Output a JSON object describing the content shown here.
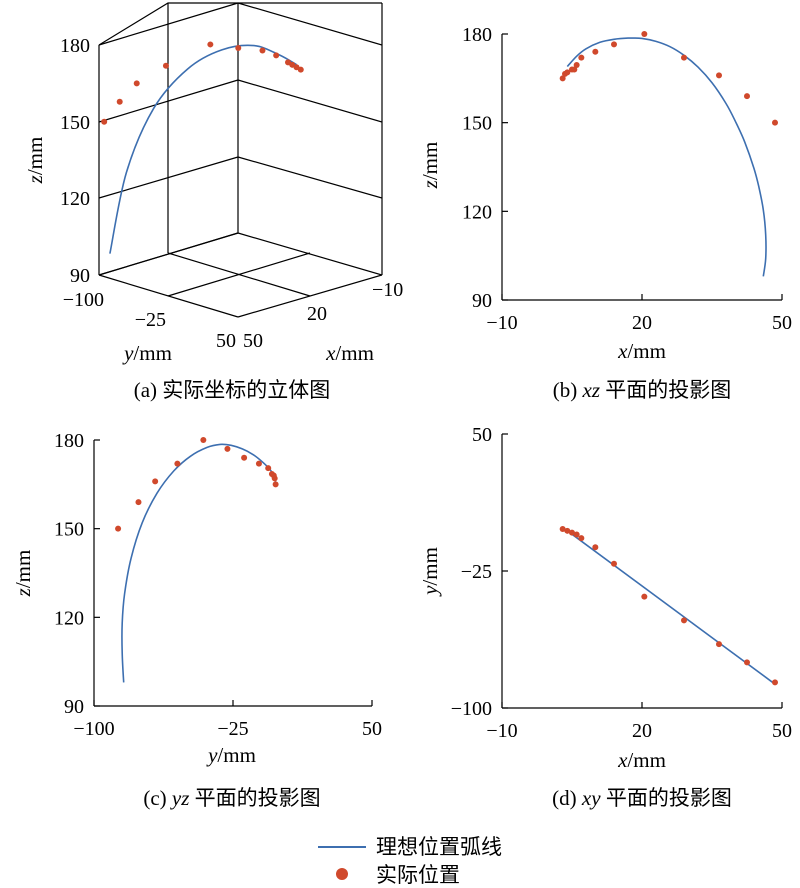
{
  "colors": {
    "ideal_line": "#3d6fb0",
    "actual_point": "#d0492c"
  },
  "legend": {
    "ideal_label": "理想位置弧线",
    "actual_label": "实际位置"
  },
  "chart_data": [
    {
      "id": "a",
      "type": "scatter",
      "caption": "(a) 实际坐标的立体图",
      "xlabel_var": "x",
      "ylabel_var": "y",
      "zlabel_var": "z",
      "unit": "/mm",
      "xlim": [
        -10,
        50
      ],
      "ylim": [
        -100,
        50
      ],
      "zlim": [
        90,
        180
      ],
      "x_tick_labels": [
        "−10",
        "20",
        "50"
      ],
      "y_tick_labels": [
        "−100",
        "−25",
        "50"
      ],
      "z_tick_labels": [
        "90",
        "120",
        "150",
        "180"
      ],
      "series": [
        {
          "name": "理想位置弧线",
          "kind": "line",
          "points": [
            [
              47,
              -96,
              98
            ],
            [
              44,
              -86,
              130
            ],
            [
              38,
              -72,
              155
            ],
            [
              30,
              -56,
              170
            ],
            [
              22,
              -40,
              177
            ],
            [
              14,
              -26,
              178
            ],
            [
              8,
              -14,
              174
            ],
            [
              4,
              -6,
              170
            ]
          ]
        },
        {
          "name": "实际位置",
          "kind": "scatter",
          "points": [
            [
              49,
              -97,
              150
            ],
            [
              46,
              -88,
              158
            ],
            [
              42,
              -80,
              165
            ],
            [
              36,
              -64,
              172
            ],
            [
              26,
              -42,
              180
            ],
            [
              19,
              -30,
              178
            ],
            [
              12,
              -22,
              176
            ],
            [
              9,
              -15,
              174
            ],
            [
              6,
              -10,
              171
            ],
            [
              5,
              -8,
              170
            ],
            [
              4,
              -6,
              169
            ],
            [
              3,
              -4,
              168
            ]
          ]
        }
      ]
    },
    {
      "id": "b",
      "type": "line",
      "caption": "(b) xz 平面的投影图",
      "caption_prefix": "(b) ",
      "caption_var": "xz",
      "caption_suffix": " 平面的投影图",
      "xlabel_var": "x",
      "ylabel_var": "z",
      "unit": "/mm",
      "xlim": [
        -10,
        50
      ],
      "ylim": [
        90,
        180
      ],
      "xticks": [
        -10,
        20,
        50
      ],
      "x_tick_labels": [
        "−10",
        "20",
        "50"
      ],
      "yticks": [
        90,
        120,
        150,
        180
      ],
      "y_tick_labels": [
        "90",
        "120",
        "150",
        "180"
      ],
      "series": [
        {
          "name": "理想位置弧线",
          "kind": "line",
          "x": [
            4,
            6,
            8,
            11,
            14,
            17,
            20,
            23,
            26,
            29,
            32,
            35,
            38,
            40,
            42,
            44,
            45,
            46,
            46.5,
            46.5,
            46
          ],
          "y": [
            169,
            172.5,
            175,
            177.2,
            178.2,
            178.6,
            178.5,
            177.5,
            175.7,
            172.8,
            168.8,
            163.5,
            156.5,
            150.5,
            143.5,
            134.5,
            128.5,
            120.5,
            112,
            104,
            98
          ]
        },
        {
          "name": "实际位置",
          "kind": "scatter",
          "x": [
            3,
            3.5,
            4,
            5,
            5.5,
            6,
            7,
            10,
            14,
            20.5,
            29,
            36.5,
            42.5,
            48.5
          ],
          "y": [
            165,
            166.5,
            167,
            168,
            168,
            169.5,
            172,
            174,
            176.5,
            180,
            172,
            166,
            159,
            150
          ]
        }
      ]
    },
    {
      "id": "c",
      "type": "line",
      "caption": "(c) yz 平面的投影图",
      "caption_prefix": "(c) ",
      "caption_var": "yz",
      "caption_suffix": " 平面的投影图",
      "xlabel_var": "y",
      "ylabel_var": "z",
      "unit": "/mm",
      "xlim": [
        -100,
        50
      ],
      "ylim": [
        90,
        180
      ],
      "xticks": [
        -100,
        -25,
        50
      ],
      "x_tick_labels": [
        "−100",
        "−25",
        "50"
      ],
      "yticks": [
        90,
        120,
        150,
        180
      ],
      "y_tick_labels": [
        "90",
        "120",
        "150",
        "180"
      ],
      "series": [
        {
          "name": "理想位置弧线",
          "kind": "line",
          "x": [
            -84,
            -84.8,
            -84.8,
            -83.5,
            -80,
            -74,
            -66,
            -57,
            -48,
            -39,
            -32,
            -26,
            -20,
            -14,
            -9,
            -5,
            -3,
            -2
          ],
          "y": [
            98,
            108,
            118,
            128,
            140,
            152,
            162,
            169.5,
            174.5,
            177.5,
            178.5,
            178.2,
            177,
            175,
            172.5,
            170,
            168,
            166
          ]
        },
        {
          "name": "实际位置",
          "kind": "scatter",
          "x": [
            -87,
            -76,
            -67,
            -55,
            -41,
            -28,
            -19,
            -11,
            -6,
            -4,
            -3,
            -2.5,
            -2
          ],
          "y": [
            150,
            159,
            166,
            172,
            180,
            177,
            174,
            172,
            170.5,
            168.5,
            168,
            167,
            165
          ]
        }
      ]
    },
    {
      "id": "d",
      "type": "line",
      "caption": "(d) xy 平面的投影图",
      "caption_prefix": "(d) ",
      "caption_var": "xy",
      "caption_suffix": " 平面的投影图",
      "xlabel_var": "x",
      "ylabel_var": "y",
      "unit": "/mm",
      "xlim": [
        -10,
        50
      ],
      "ylim": [
        -100,
        50
      ],
      "xticks": [
        -10,
        20,
        50
      ],
      "x_tick_labels": [
        "−10",
        "20",
        "50"
      ],
      "yticks": [
        -100,
        -25,
        50
      ],
      "y_tick_labels": [
        "−100",
        "−25",
        "50"
      ],
      "series": [
        {
          "name": "理想位置弧线",
          "kind": "line",
          "x": [
            4,
            48
          ],
          "y": [
            -3,
            -86
          ]
        },
        {
          "name": "实际位置",
          "kind": "scatter",
          "x": [
            3,
            4,
            5,
            6,
            7,
            10,
            14,
            20.5,
            29,
            36.5,
            42.5,
            48.5
          ],
          "y": [
            -2,
            -3,
            -4,
            -5,
            -7,
            -12,
            -21,
            -39,
            -52,
            -65,
            -75,
            -86
          ]
        }
      ]
    }
  ]
}
